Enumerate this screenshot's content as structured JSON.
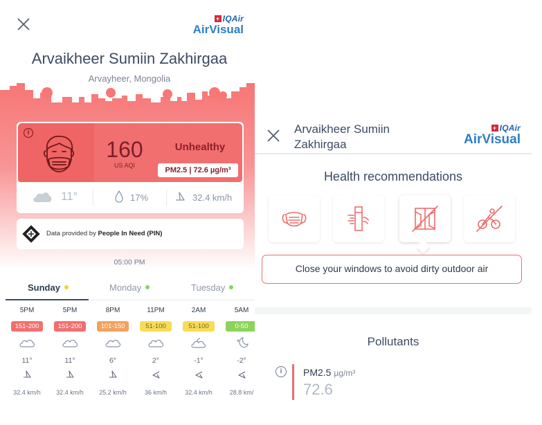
{
  "left": {
    "brand": {
      "top": "IQAir",
      "top_prefix": "+",
      "name": "AirVisual"
    },
    "station": {
      "name": "Arvaikheer Sumiin Zakhirgaa",
      "location": "Arvayheer, Mongolia"
    },
    "aqi": {
      "value": "160",
      "unit": "US AQI",
      "level": "Unhealthy",
      "pollutant": "PM2.5 | 72.6 µg/m³",
      "info_icon": "info-icon",
      "face_icon": "masked-face-icon",
      "color": "#f26f6f"
    },
    "weather": {
      "icon": "cloud-icon",
      "temperature": "11°",
      "humidity": "17%",
      "wind": "32.4 km/h"
    },
    "provider": {
      "prefix": "Data provided by ",
      "name": "People In Need (PIN)"
    },
    "time_label": "05:00 PM",
    "days": [
      {
        "label": "Sunday",
        "dot_color": "#f5d327",
        "active": true
      },
      {
        "label": "Monday",
        "dot_color": "#7ed957",
        "active": false
      },
      {
        "label": "Tuesday",
        "dot_color": "#7ed957",
        "active": false
      }
    ],
    "forecast": [
      {
        "time": "5PM",
        "badge": "151-200",
        "badge_color": "#f26f6f",
        "icon": "cloud-icon",
        "temp": "11°",
        "wind": "32.4 km/h"
      },
      {
        "time": "5PM",
        "badge": "151-200",
        "badge_color": "#f26f6f",
        "icon": "cloud-icon",
        "temp": "11°",
        "wind": "32.4 km/h"
      },
      {
        "time": "8PM",
        "badge": "101-150",
        "badge_color": "#f5a15e",
        "icon": "cloud-icon",
        "temp": "6°",
        "wind": "25.2 km/h"
      },
      {
        "time": "11PM",
        "badge": "51-100",
        "badge_color": "#f7dc5a",
        "icon": "cloud-icon",
        "temp": "2°",
        "wind": "36 km/h"
      },
      {
        "time": "2AM",
        "badge": "51-100",
        "badge_color": "#f7dc5a",
        "icon": "cloud-moon-icon",
        "temp": "-1°",
        "wind": "32.4 km/h"
      },
      {
        "time": "5AM",
        "badge": "0-50",
        "badge_color": "#8bd35a",
        "icon": "moon-icon",
        "temp": "-2°",
        "wind": "28.8 km/"
      }
    ]
  },
  "right": {
    "brand": {
      "top": "IQAir",
      "top_prefix": "+",
      "name": "AirVisual"
    },
    "station_name": "Arvaikheer Sumiin Zakhirgaa",
    "recommendations_title": "Health recommendations",
    "recommendations": [
      {
        "icon": "mask-icon"
      },
      {
        "icon": "air-purifier-icon"
      },
      {
        "icon": "closed-window-icon",
        "active": true
      },
      {
        "icon": "no-cycling-icon"
      }
    ],
    "tip": "Close your windows to avoid dirty outdoor air",
    "pollutants_title": "Pollutants",
    "pollutants": [
      {
        "name": "PM2.5",
        "unit": "µg/m³",
        "value": "72.6",
        "color": "#f06a6a"
      }
    ]
  }
}
